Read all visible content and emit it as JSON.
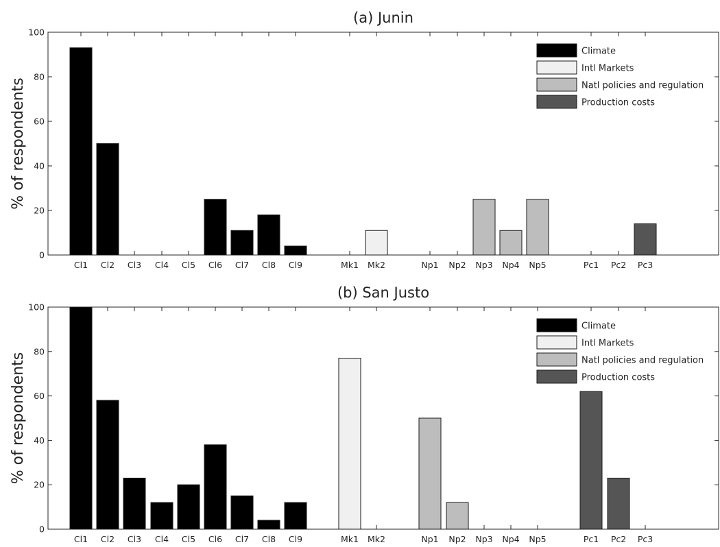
{
  "chart_data": [
    {
      "type": "bar",
      "title": "(a) Junin",
      "xlabel": "",
      "ylabel": "% of respondents",
      "ylim": [
        0,
        100
      ],
      "yticks": [
        0,
        20,
        40,
        60,
        80,
        100
      ],
      "grid": false,
      "legend_position": "top-right",
      "legend": [
        {
          "label": "Climate",
          "color": "#000000"
        },
        {
          "label": "Intl Markets",
          "color": "#f0f0f0"
        },
        {
          "label": "Natl policies and regulation",
          "color": "#bdbdbd"
        },
        {
          "label": "Production costs",
          "color": "#555555"
        }
      ],
      "categories": [
        {
          "label": "Cl1",
          "value": 93,
          "group": "Climate"
        },
        {
          "label": "Cl2",
          "value": 50,
          "group": "Climate"
        },
        {
          "label": "Cl3",
          "value": 0,
          "group": "Climate"
        },
        {
          "label": "Cl4",
          "value": 0,
          "group": "Climate"
        },
        {
          "label": "Cl5",
          "value": 0,
          "group": "Climate"
        },
        {
          "label": "Cl6",
          "value": 25,
          "group": "Climate"
        },
        {
          "label": "Cl7",
          "value": 11,
          "group": "Climate"
        },
        {
          "label": "Cl8",
          "value": 18,
          "group": "Climate"
        },
        {
          "label": "Cl9",
          "value": 4,
          "group": "Climate"
        },
        {
          "label": "Mk1",
          "value": 0,
          "group": "Intl Markets"
        },
        {
          "label": "Mk2",
          "value": 11,
          "group": "Intl Markets"
        },
        {
          "label": "Np1",
          "value": 0,
          "group": "Natl policies and regulation"
        },
        {
          "label": "Np2",
          "value": 0,
          "group": "Natl policies and regulation"
        },
        {
          "label": "Np3",
          "value": 25,
          "group": "Natl policies and regulation"
        },
        {
          "label": "Np4",
          "value": 11,
          "group": "Natl policies and regulation"
        },
        {
          "label": "Np5",
          "value": 25,
          "group": "Natl policies and regulation"
        },
        {
          "label": "Pc1",
          "value": 0,
          "group": "Production costs"
        },
        {
          "label": "Pc2",
          "value": 0,
          "group": "Production costs"
        },
        {
          "label": "Pc3",
          "value": 14,
          "group": "Production costs"
        }
      ]
    },
    {
      "type": "bar",
      "title": "(b) San Justo",
      "xlabel": "",
      "ylabel": "% of respondents",
      "ylim": [
        0,
        100
      ],
      "yticks": [
        0,
        20,
        40,
        60,
        80,
        100
      ],
      "grid": false,
      "legend_position": "top-right",
      "legend": [
        {
          "label": "Climate",
          "color": "#000000"
        },
        {
          "label": "Intl Markets",
          "color": "#f0f0f0"
        },
        {
          "label": "Natl policies and regulation",
          "color": "#bdbdbd"
        },
        {
          "label": "Production costs",
          "color": "#555555"
        }
      ],
      "categories": [
        {
          "label": "Cl1",
          "value": 100,
          "group": "Climate"
        },
        {
          "label": "Cl2",
          "value": 58,
          "group": "Climate"
        },
        {
          "label": "Cl3",
          "value": 23,
          "group": "Climate"
        },
        {
          "label": "Cl4",
          "value": 12,
          "group": "Climate"
        },
        {
          "label": "Cl5",
          "value": 20,
          "group": "Climate"
        },
        {
          "label": "Cl6",
          "value": 38,
          "group": "Climate"
        },
        {
          "label": "Cl7",
          "value": 15,
          "group": "Climate"
        },
        {
          "label": "Cl8",
          "value": 4,
          "group": "Climate"
        },
        {
          "label": "Cl9",
          "value": 12,
          "group": "Climate"
        },
        {
          "label": "Mk1",
          "value": 77,
          "group": "Intl Markets"
        },
        {
          "label": "Mk2",
          "value": 0,
          "group": "Intl Markets"
        },
        {
          "label": "Np1",
          "value": 50,
          "group": "Natl policies and regulation"
        },
        {
          "label": "Np2",
          "value": 12,
          "group": "Natl policies and regulation"
        },
        {
          "label": "Np3",
          "value": 0,
          "group": "Natl policies and regulation"
        },
        {
          "label": "Np4",
          "value": 0,
          "group": "Natl policies and regulation"
        },
        {
          "label": "Np5",
          "value": 0,
          "group": "Natl policies and regulation"
        },
        {
          "label": "Pc1",
          "value": 62,
          "group": "Production costs"
        },
        {
          "label": "Pc2",
          "value": 23,
          "group": "Production costs"
        },
        {
          "label": "Pc3",
          "value": 0,
          "group": "Production costs"
        }
      ]
    }
  ]
}
